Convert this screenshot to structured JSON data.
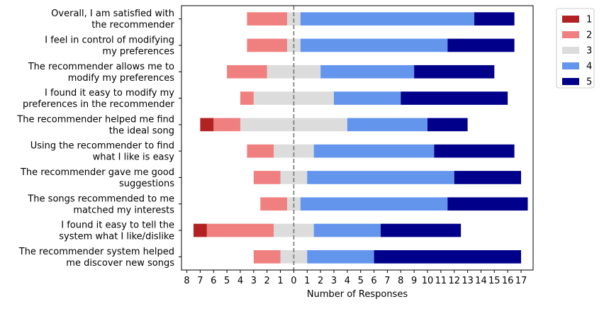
{
  "chart_data": {
    "type": "diverging-bar",
    "categories": [
      "Overall, I am satisfied with\nthe recommender",
      "I feel in control of modifying\nmy preferences",
      "The recommender allows me to\nmodify my preferences",
      "I found it easy to modify my\npreferences in the recommender",
      "The recommender helped me find\nthe ideal song",
      "Using the recommender to find\nwhat I like is easy",
      "The recommender gave me good\nsuggestions",
      "The songs recommended to me\nmatched my interests",
      "I found it easy to tell the\nsystem what I like/dislike",
      "The recommender system helped\nme discover new songs"
    ],
    "series": [
      {
        "name": "1",
        "color": "#b22222",
        "values": [
          0,
          0,
          0,
          0,
          1,
          0,
          0,
          0,
          1,
          0
        ]
      },
      {
        "name": "2",
        "color": "#f08080",
        "values": [
          3,
          3,
          3,
          1,
          2,
          2,
          2,
          2,
          5,
          2
        ]
      },
      {
        "name": "3",
        "color": "#dcdcdc",
        "values": [
          1,
          1,
          4,
          6,
          8,
          3,
          2,
          1,
          3,
          2
        ]
      },
      {
        "name": "4",
        "color": "#6495ed",
        "values": [
          13,
          11,
          7,
          5,
          6,
          9,
          11,
          11,
          5,
          5
        ]
      },
      {
        "name": "5",
        "color": "#00008b",
        "values": [
          3,
          5,
          6,
          8,
          3,
          6,
          5,
          6,
          6,
          11
        ]
      }
    ],
    "neutral_series": 2,
    "xlabel": "Number of Responses",
    "xlim": [
      -8.4,
      17.9
    ],
    "xticks": [
      {
        "value": -8,
        "label": "8"
      },
      {
        "value": -7,
        "label": "7"
      },
      {
        "value": -6,
        "label": "6"
      },
      {
        "value": -5,
        "label": "5"
      },
      {
        "value": -4,
        "label": "4"
      },
      {
        "value": -3,
        "label": "3"
      },
      {
        "value": -2,
        "label": "2"
      },
      {
        "value": -1,
        "label": "1"
      },
      0,
      1,
      2,
      3,
      4,
      5,
      6,
      7,
      8,
      9,
      10,
      11,
      12,
      13,
      14,
      15,
      16,
      17
    ],
    "center_line": true,
    "legend": "outside-upper-right"
  }
}
